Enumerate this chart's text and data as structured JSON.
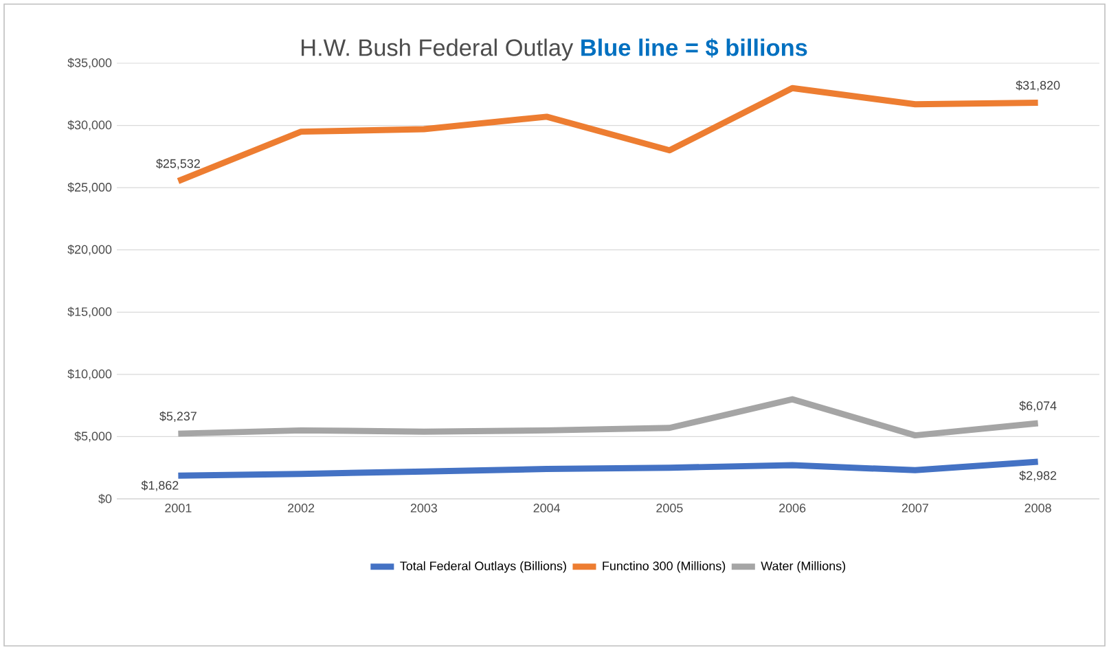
{
  "chart_data": {
    "type": "line",
    "title": "H.W. Bush Federal Outlay",
    "subtitle": "Blue line = $ billions",
    "categories": [
      "2001",
      "2002",
      "2003",
      "2004",
      "2005",
      "2006",
      "2007",
      "2008"
    ],
    "series": [
      {
        "name": "Total Federal Outlays (Billions)",
        "color": "#4472c4",
        "values": [
          1862,
          2000,
          2200,
          2400,
          2500,
          2700,
          2300,
          2982
        ],
        "value_labels": [
          "$1,862",
          null,
          null,
          null,
          null,
          null,
          null,
          "$2,982"
        ]
      },
      {
        "name": "Functino 300 (Millions)",
        "color": "#ed7d31",
        "values": [
          25532,
          29500,
          29700,
          30700,
          28000,
          33000,
          31700,
          31820
        ],
        "value_labels": [
          "$25,532",
          null,
          null,
          null,
          null,
          null,
          null,
          "$31,820"
        ]
      },
      {
        "name": "Water (Millions)",
        "color": "#a5a5a5",
        "values": [
          5237,
          5500,
          5400,
          5500,
          5700,
          8000,
          5100,
          6074
        ],
        "value_labels": [
          "$5,237",
          null,
          null,
          null,
          null,
          null,
          null,
          "$6,074"
        ]
      }
    ],
    "ylim": [
      0,
      35000
    ],
    "yticks": [
      {
        "value": 0,
        "label": "$0"
      },
      {
        "value": 5000,
        "label": "$5,000"
      },
      {
        "value": 10000,
        "label": "$10,000"
      },
      {
        "value": 15000,
        "label": "$15,000"
      },
      {
        "value": 20000,
        "label": "$20,000"
      },
      {
        "value": 25000,
        "label": "$25,000"
      },
      {
        "value": 30000,
        "label": "$30,000"
      },
      {
        "value": 35000,
        "label": "$35,000"
      }
    ],
    "grid": "y",
    "legend": "bottom",
    "marker": "none",
    "line_style": "solid"
  }
}
